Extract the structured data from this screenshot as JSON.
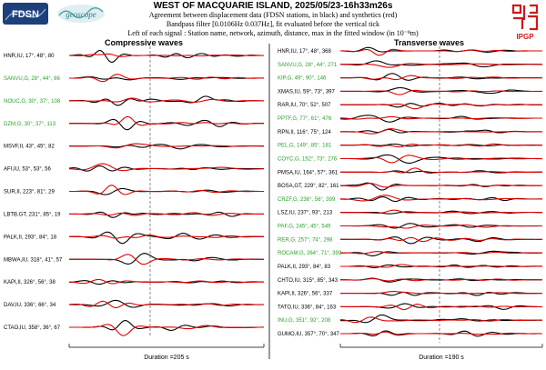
{
  "header": {
    "title": "WEST OF MACQUARIE ISLAND, 2025/05/23-16h33m26s",
    "line1": "Agreement between displacement data (FDSN stations, in black) and synthetics (red)",
    "line2": "Bandpass filter [0.0106Hz 0.037Hz], fit evaluated before the vertical tick",
    "line3": "Left of each signal : Station name, network, azimuth, distance, max in the fitted window (in 10⁻⁸m)"
  },
  "logos": {
    "fdsn": "FDSN",
    "geoscope": "geoscope",
    "ipgp": "IPGP"
  },
  "colors": {
    "data": "#000000",
    "synthetic": "#e00000",
    "fdsn_station": "#2aa02a",
    "other_station": "#000000"
  },
  "chart_data": [
    {
      "type": "line",
      "title": "Compressive waves",
      "duration_label": "Duration =205 s",
      "stations": [
        {
          "label": "HNR,IU, 17°, 48°, 80",
          "fdsn": false
        },
        {
          "label": "SANVU,G, 28°, 44°, 86",
          "fdsn": true
        },
        {
          "label": "NOUC,G, 30°, 37°, 108",
          "fdsn": true
        },
        {
          "label": "DZM,G, 30°, 37°, 113",
          "fdsn": true
        },
        {
          "label": "MSVF,II, 43°, 45°, 82",
          "fdsn": false
        },
        {
          "label": "AFI,IU, 53°, 53°, 56",
          "fdsn": false
        },
        {
          "label": "SUR,II, 223°, 81°, 29",
          "fdsn": false
        },
        {
          "label": "LBTB,GT, 231°, 85°, 19",
          "fdsn": false
        },
        {
          "label": "PALK,II, 293°, 84°, 18",
          "fdsn": false
        },
        {
          "label": "MBWA,IU, 318°, 41°, 57",
          "fdsn": false
        },
        {
          "label": "KAPI,II, 326°, 56°, 38",
          "fdsn": false
        },
        {
          "label": "DAV,IU, 336°, 66°, 34",
          "fdsn": false
        },
        {
          "label": "CTAO,IU, 358°, 36°, 67",
          "fdsn": false
        }
      ]
    },
    {
      "type": "line",
      "title": "Transverse waves",
      "duration_label": "Duration =190 s",
      "stations": [
        {
          "label": "HNR,IU, 17°, 48°, 368",
          "fdsn": false
        },
        {
          "label": "SANVU,G, 28°, 44°, 271",
          "fdsn": true
        },
        {
          "label": "KIP,G, 49°, 90°, 146",
          "fdsn": true
        },
        {
          "label": "XMAS,IU, 59°, 73°, 397",
          "fdsn": false
        },
        {
          "label": "RAR,IU, 70°, 52°, 507",
          "fdsn": false
        },
        {
          "label": "PPTF,G, 77°, 61°, 476",
          "fdsn": true
        },
        {
          "label": "RPN,II, 116°, 75°, 124",
          "fdsn": false
        },
        {
          "label": "PEL,G, 149°, 85°, 181",
          "fdsn": true
        },
        {
          "label": "COYC,G, 152°, 73°, 276",
          "fdsn": true
        },
        {
          "label": "PMSA,IU, 164°, 57°, 361",
          "fdsn": false
        },
        {
          "label": "BOSA,GT, 229°, 82°, 161",
          "fdsn": false
        },
        {
          "label": "CRZF,G, 236°, 56°, 399",
          "fdsn": true
        },
        {
          "label": "LSZ,IU, 237°, 93°, 213",
          "fdsn": false
        },
        {
          "label": "PAF,G, 245°, 45°, 549",
          "fdsn": true
        },
        {
          "label": "RER,G, 257°, 74°, 298",
          "fdsn": true
        },
        {
          "label": "ROCAM,G, 264°, 71°, 399",
          "fdsn": true
        },
        {
          "label": "PALK,II, 293°, 84°, 83",
          "fdsn": false
        },
        {
          "label": "CHTO,IU, 315°, 85°, 343",
          "fdsn": false
        },
        {
          "label": "KAPI,II, 326°, 56°, 337",
          "fdsn": false
        },
        {
          "label": "TATO,IU, 336°, 84°, 163",
          "fdsn": false
        },
        {
          "label": "INU,G, 351°, 92°, 208",
          "fdsn": true
        },
        {
          "label": "GUMO,IU, 357°, 70°, 347",
          "fdsn": false
        }
      ]
    }
  ]
}
